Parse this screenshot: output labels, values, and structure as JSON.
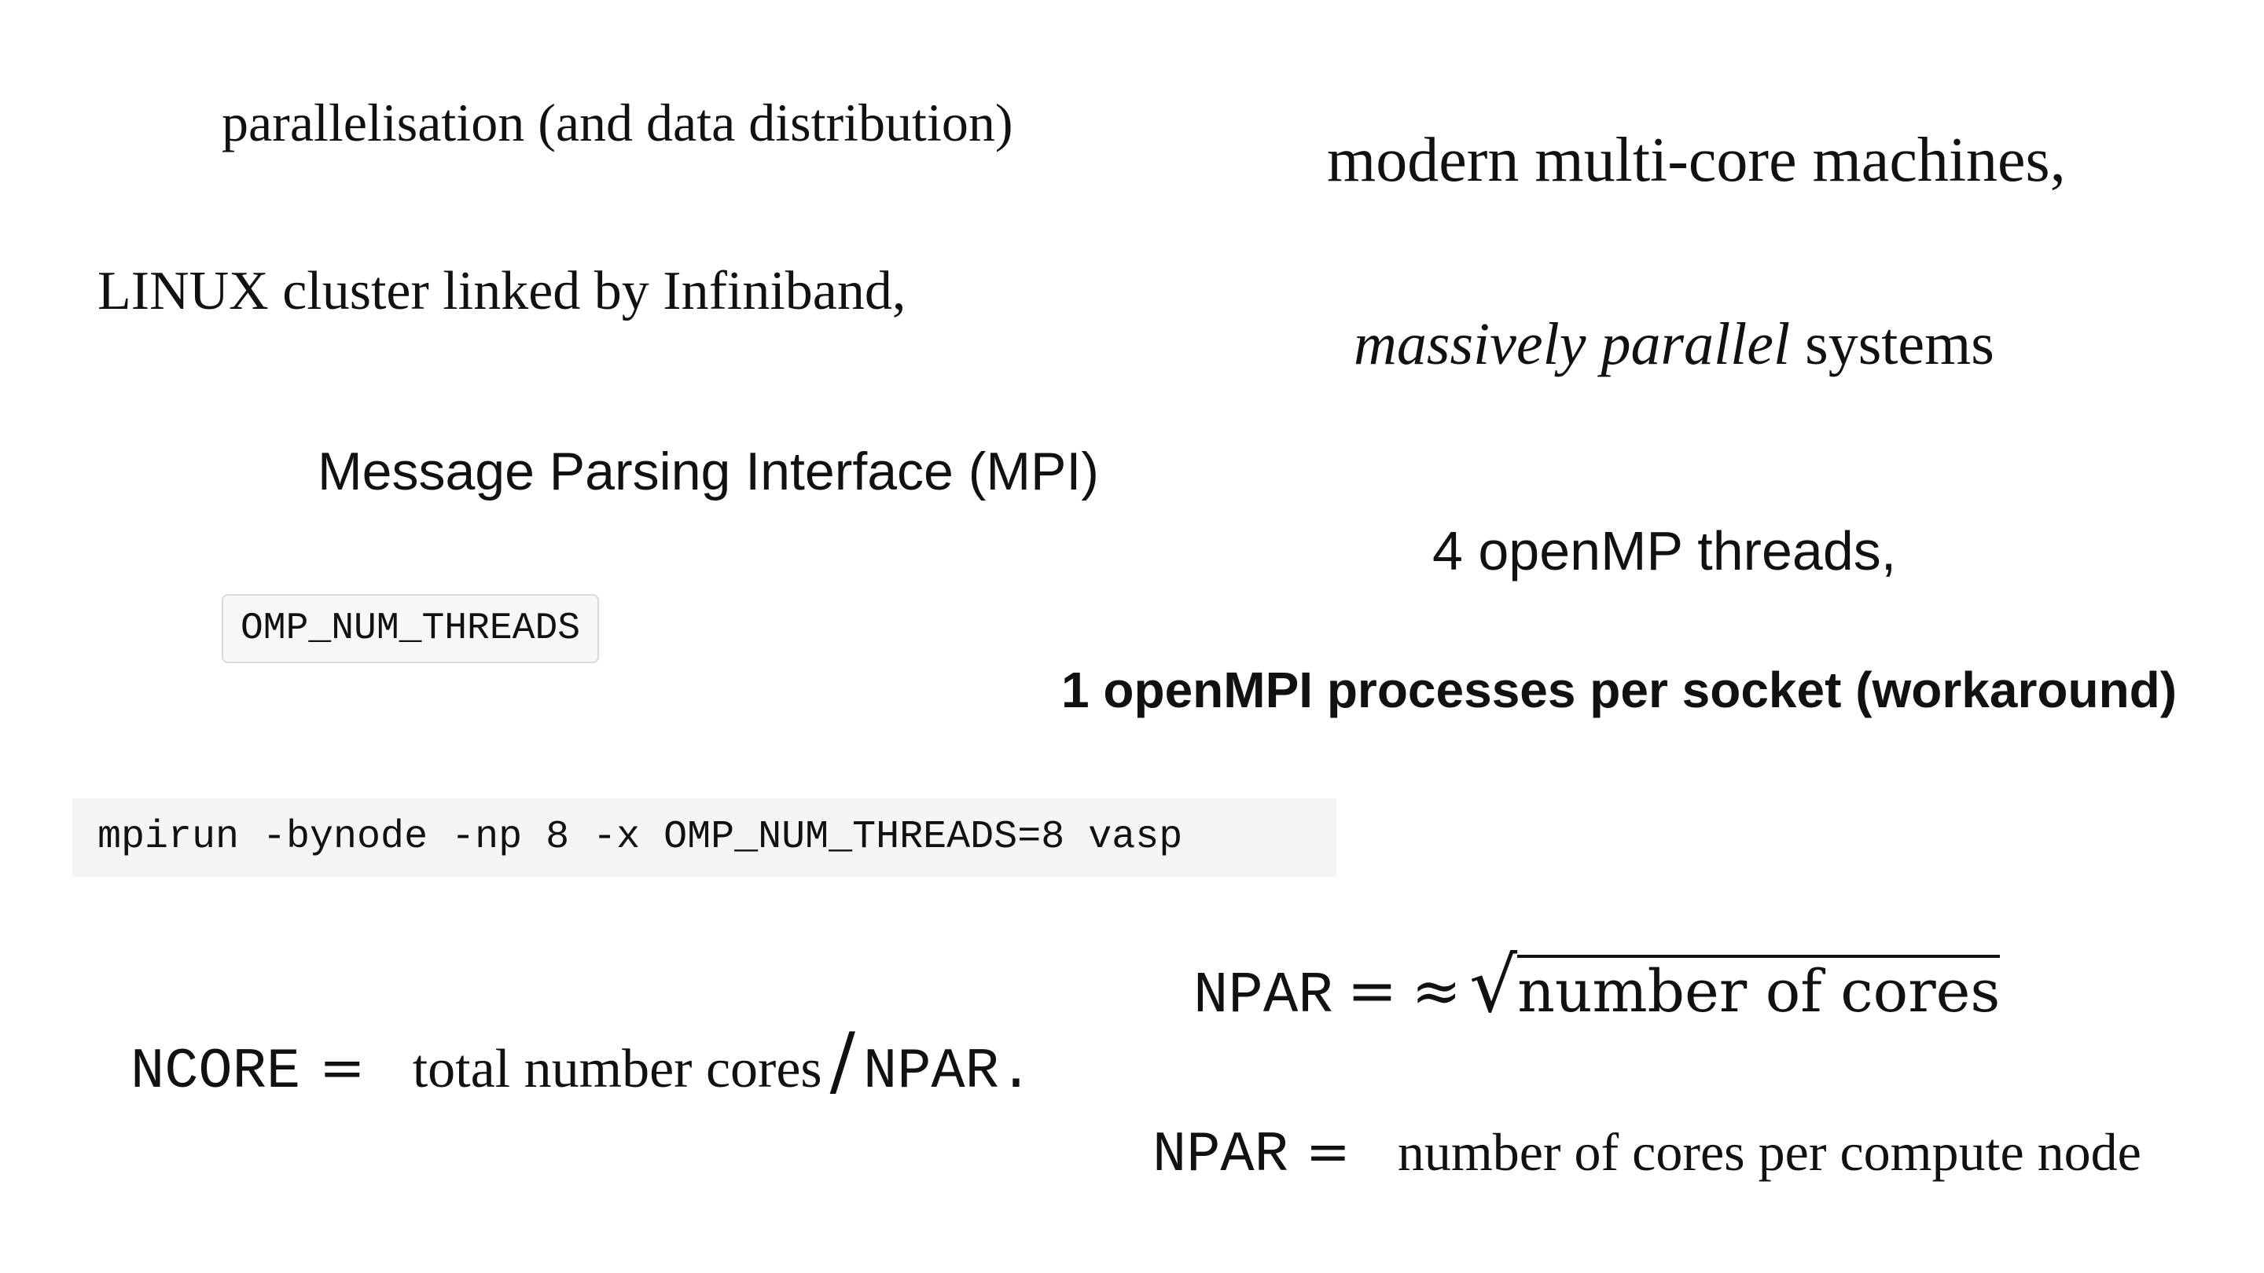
{
  "left_column": {
    "parallelisation": "parallelisation (and data distribution)",
    "linux_cluster": "LINUX cluster linked by Infiniband,",
    "mpi": "Message Parsing Interface (MPI)",
    "omp_env_var": "OMP_NUM_THREADS",
    "mpirun_command": "mpirun -bynode -np 8 -x OMP_NUM_THREADS=8 vasp"
  },
  "right_column": {
    "multicore": "modern multi-core machines,",
    "massively_italic": "massively parallel",
    "massively_rest": " systems",
    "openmp_threads": "4 openMP threads,",
    "openmpi_processes": "1 openMPI processes per socket (workaround)"
  },
  "formulas": {
    "ncore": {
      "lhs": "NCORE",
      "eq": "=",
      "text": "total number cores",
      "slash": "/",
      "rhs": "NPAR."
    },
    "npar_sqrt": {
      "lhs": "NPAR",
      "eq": "=",
      "approx": "≈",
      "radical": "√",
      "radicand": "number of cores"
    },
    "npar_node": {
      "lhs": "NPAR",
      "eq": "=",
      "text": "number of cores per compute node"
    }
  }
}
